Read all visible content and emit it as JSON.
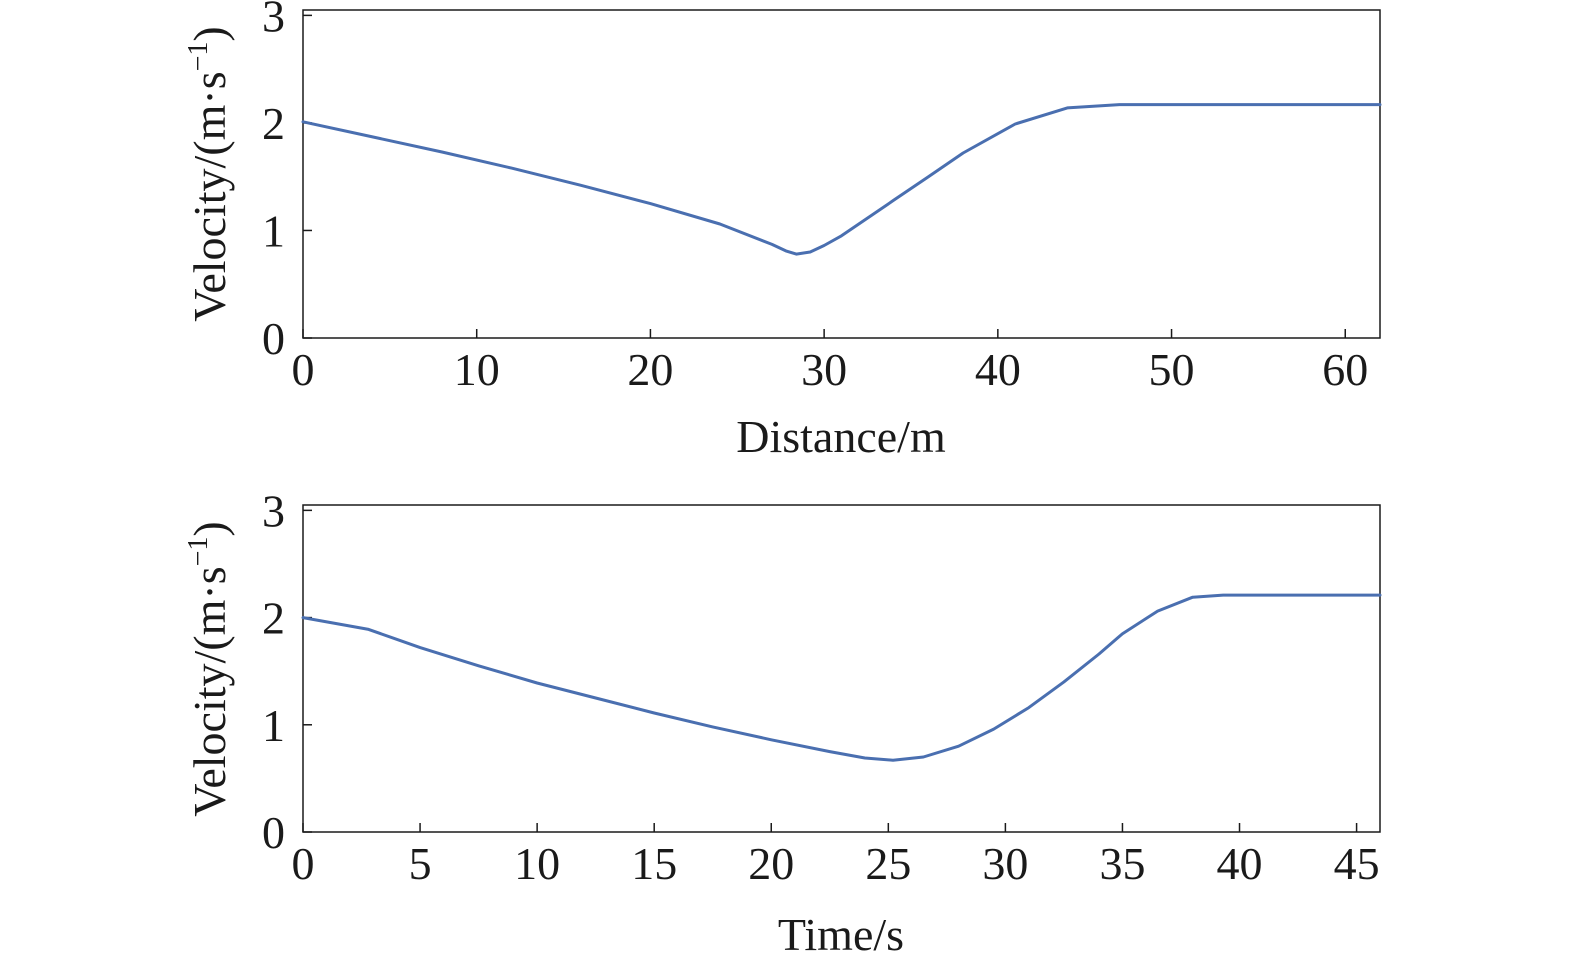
{
  "chart_data": [
    {
      "type": "line",
      "title": "",
      "xlabel": "Distance/m",
      "ylabel": {
        "text": "Velocity/(m·s",
        "sup": "−1",
        "close": ")"
      },
      "xlim": [
        0,
        62
      ],
      "ylim": [
        0,
        3.05
      ],
      "xticks": [
        0,
        10,
        20,
        30,
        40,
        50,
        60
      ],
      "yticks": [
        0,
        1,
        2,
        3
      ],
      "grid": false,
      "line_color": "#4a6fb0",
      "x": [
        0,
        4,
        8,
        12,
        16,
        20,
        24,
        27,
        27.8,
        28.4,
        29.2,
        30,
        31,
        34,
        36,
        38,
        41,
        44,
        47,
        52,
        62
      ],
      "y": [
        2.01,
        1.87,
        1.73,
        1.58,
        1.42,
        1.25,
        1.06,
        0.87,
        0.81,
        0.78,
        0.8,
        0.86,
        0.95,
        1.28,
        1.5,
        1.72,
        1.99,
        2.14,
        2.17,
        2.17,
        2.17
      ]
    },
    {
      "type": "line",
      "title": "",
      "xlabel": "Time/s",
      "ylabel": {
        "text": "Velocity/(m·s",
        "sup": "−1",
        "close": ")"
      },
      "xlim": [
        0,
        46
      ],
      "ylim": [
        0,
        3.05
      ],
      "xticks": [
        0,
        5,
        10,
        15,
        20,
        25,
        30,
        35,
        40,
        45
      ],
      "yticks": [
        0,
        1,
        2,
        3
      ],
      "grid": false,
      "line_color": "#4a6fb0",
      "x": [
        0,
        2.8,
        5,
        7.5,
        10,
        12.5,
        15,
        17.5,
        20,
        22.5,
        24,
        25.2,
        26.5,
        28,
        29.5,
        31,
        32.5,
        34,
        35,
        36.5,
        38,
        39.3,
        41,
        46
      ],
      "y": [
        2.0,
        1.89,
        1.72,
        1.55,
        1.39,
        1.25,
        1.11,
        0.98,
        0.86,
        0.75,
        0.69,
        0.67,
        0.7,
        0.8,
        0.96,
        1.16,
        1.4,
        1.66,
        1.85,
        2.06,
        2.19,
        2.21,
        2.21,
        2.21
      ]
    }
  ]
}
